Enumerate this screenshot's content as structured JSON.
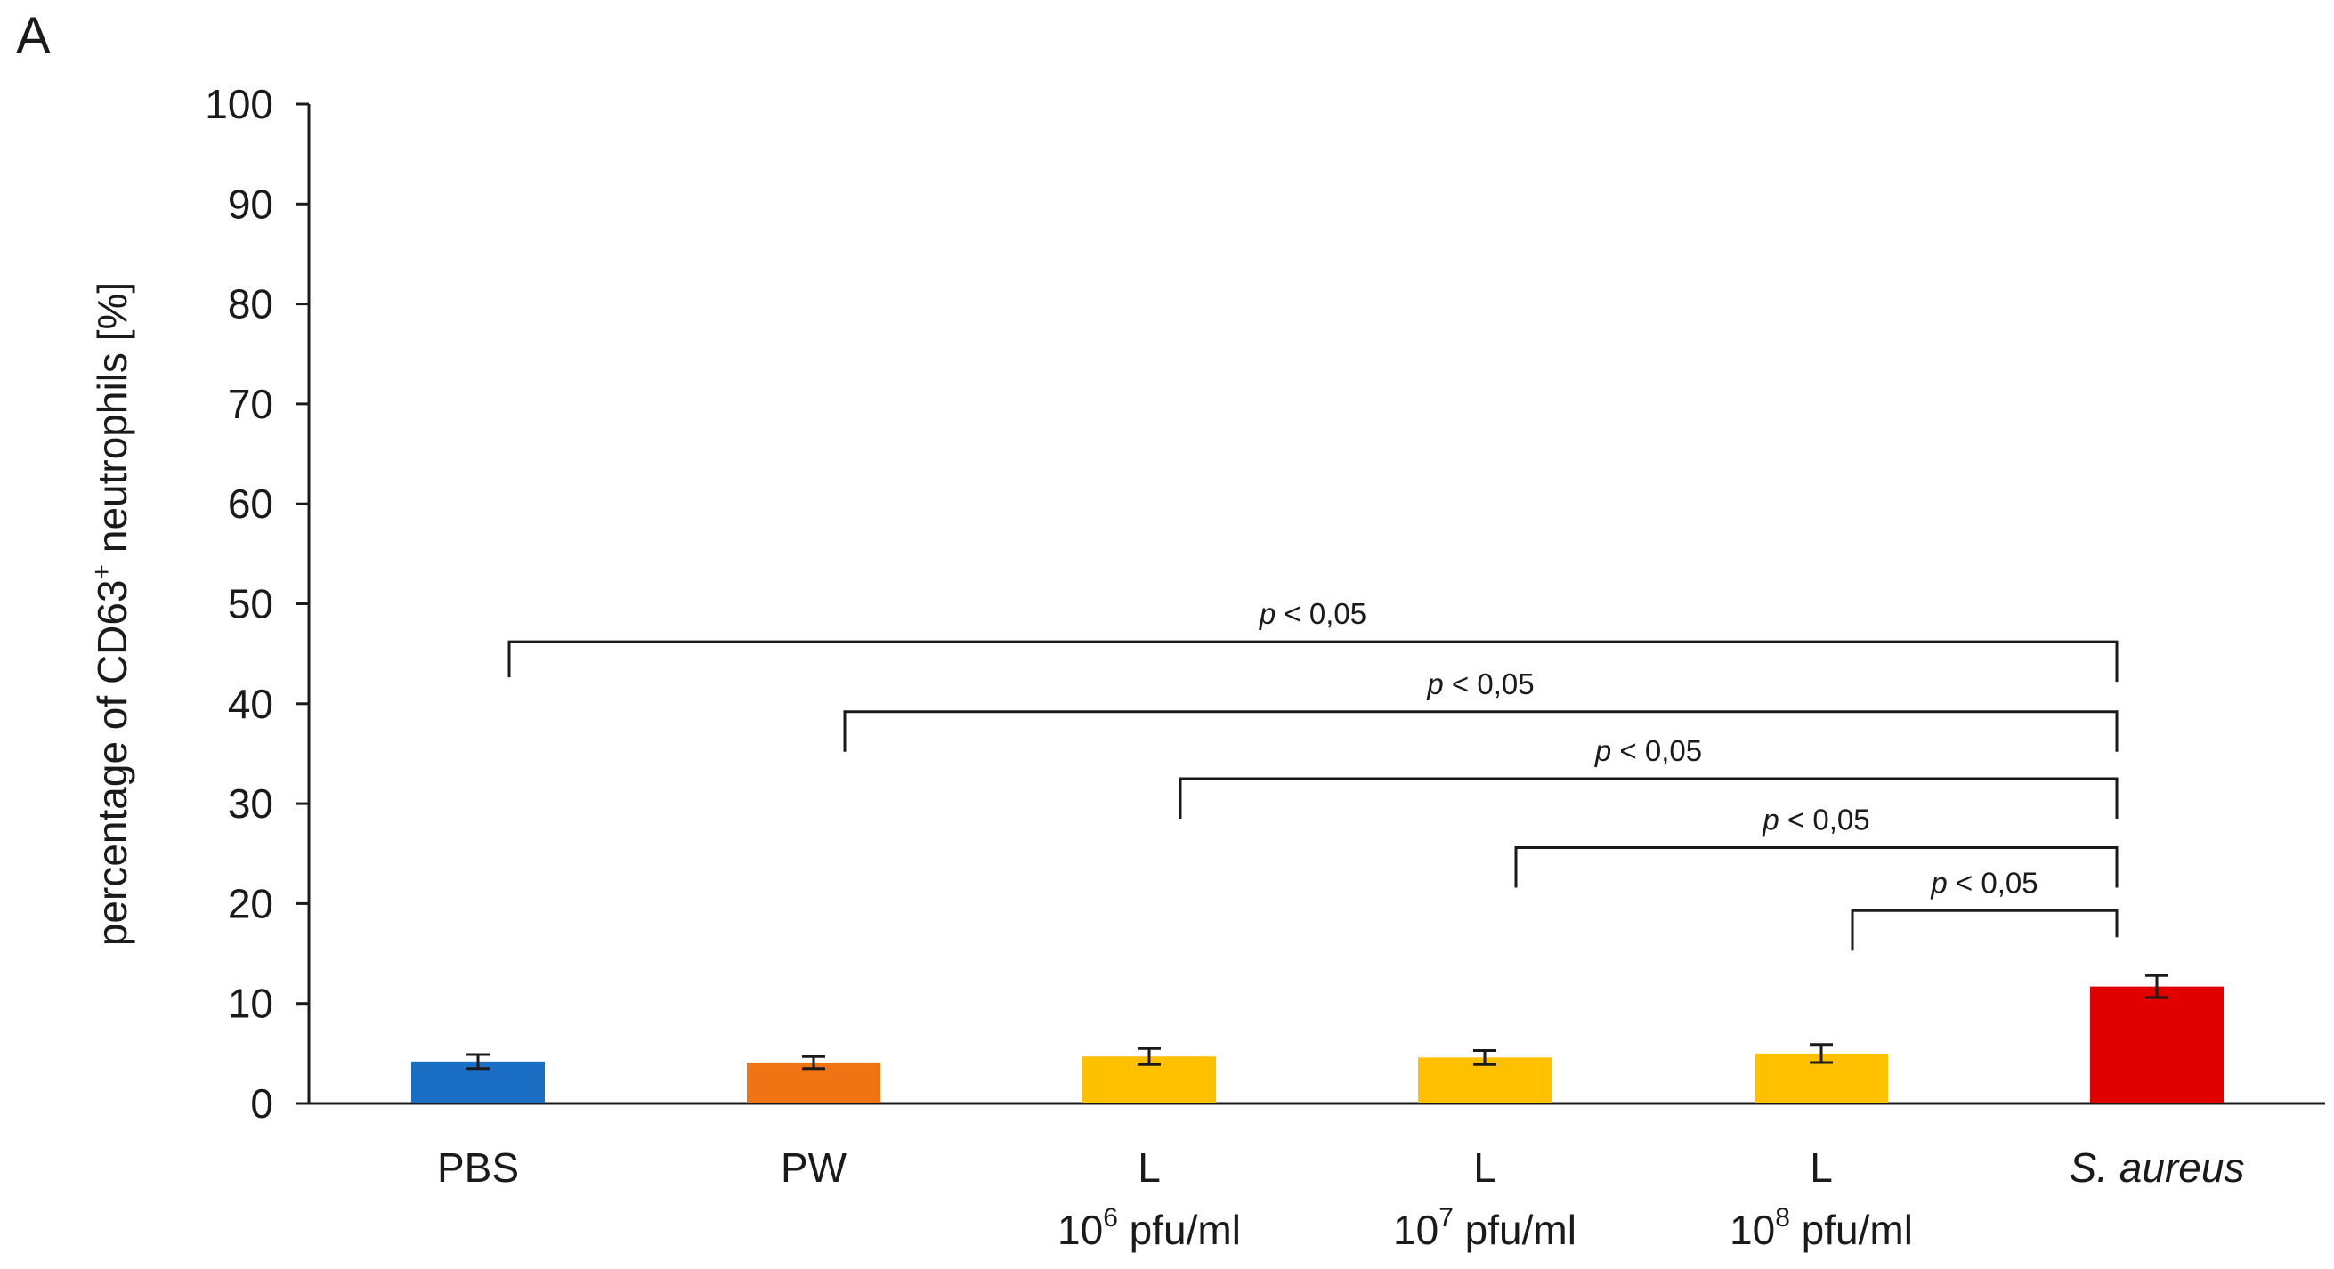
{
  "chart_data": {
    "type": "bar",
    "panel_label": "A",
    "ylabel": {
      "prefix": "percentage of CD63",
      "superscript": "+",
      "suffix": " neutrophils [%]"
    },
    "ylim": [
      0,
      100
    ],
    "yticks": [
      0,
      10,
      20,
      30,
      40,
      50,
      60,
      70,
      80,
      90,
      100
    ],
    "categories": [
      {
        "line1": "PBS",
        "line2": null,
        "italic": false
      },
      {
        "line1": "PW",
        "line2": null,
        "italic": false
      },
      {
        "line1": "L",
        "line2": {
          "base": "10",
          "exp": "6",
          "unit": " pfu/ml"
        },
        "italic": false
      },
      {
        "line1": "L",
        "line2": {
          "base": "10",
          "exp": "7",
          "unit": " pfu/ml"
        },
        "italic": false
      },
      {
        "line1": "L",
        "line2": {
          "base": "10",
          "exp": "8",
          "unit": " pfu/ml"
        },
        "italic": false
      },
      {
        "line1": "S. aureus",
        "line2": null,
        "italic": true
      }
    ],
    "values": [
      4.2,
      4.1,
      4.7,
      4.6,
      5.0,
      11.7
    ],
    "errors": [
      0.7,
      0.6,
      0.8,
      0.7,
      0.9,
      1.1
    ],
    "colors": [
      "#1a6fc4",
      "#f07414",
      "#ffc000",
      "#ffc000",
      "#ffc000",
      "#e00000"
    ],
    "significance": [
      {
        "from": 0,
        "to": 5,
        "y": 46.2,
        "p_symbol": "p",
        "p_text": " < 0,05"
      },
      {
        "from": 1,
        "to": 5,
        "y": 39.2,
        "p_symbol": "p",
        "p_text": " < 0,05"
      },
      {
        "from": 2,
        "to": 5,
        "y": 32.5,
        "p_symbol": "p",
        "p_text": " < 0,05"
      },
      {
        "from": 3,
        "to": 5,
        "y": 25.6,
        "p_symbol": "p",
        "p_text": " < 0,05"
      },
      {
        "from": 4,
        "to": 5,
        "y": 19.3,
        "p_symbol": "p",
        "p_text": " < 0,05"
      }
    ]
  }
}
